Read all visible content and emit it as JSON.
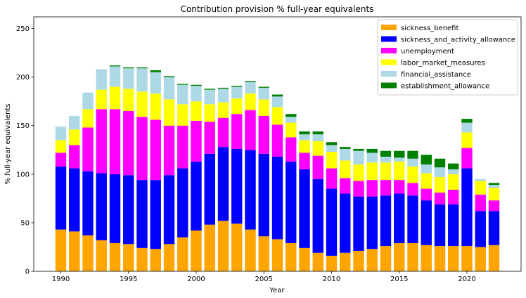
{
  "chart_data": {
    "type": "bar",
    "stacked": true,
    "title": "Contribution provision % full-year equivalents",
    "xlabel": "Year",
    "ylabel": "% full-year equivalents",
    "xlim": [
      1988,
      2024
    ],
    "ylim": [
      0,
      262
    ],
    "xticks": [
      1990,
      1995,
      2000,
      2005,
      2010,
      2015,
      2020
    ],
    "yticks": [
      0,
      50,
      100,
      150,
      200,
      250
    ],
    "grid": false,
    "legend_position": "top-right",
    "x": [
      1990,
      1991,
      1992,
      1993,
      1994,
      1995,
      1996,
      1997,
      1998,
      1999,
      2000,
      2001,
      2002,
      2003,
      2004,
      2005,
      2006,
      2007,
      2008,
      2009,
      2010,
      2011,
      2012,
      2013,
      2014,
      2015,
      2016,
      2017,
      2018,
      2019,
      2020,
      2021,
      2022
    ],
    "series": [
      {
        "name": "sickness_benefit",
        "color": "#ffa500",
        "values": [
          43,
          41,
          37,
          32,
          29,
          28,
          24,
          23,
          28,
          35,
          42,
          48,
          52,
          49,
          43,
          36,
          33,
          29,
          24,
          19,
          16,
          19,
          21,
          23,
          26,
          29,
          29,
          27,
          26,
          26,
          26,
          25,
          27
        ]
      },
      {
        "name": "sickness_and_activity_allowance",
        "color": "#0000ff",
        "values": [
          65,
          65,
          66,
          69,
          71,
          71,
          70,
          71,
          71,
          71,
          71,
          73,
          76,
          77,
          82,
          85,
          85,
          84,
          81,
          76,
          69,
          61,
          56,
          54,
          52,
          51,
          49,
          46,
          43,
          43,
          80,
          37,
          35
        ]
      },
      {
        "name": "unemployment",
        "color": "#ff00ff",
        "values": [
          14,
          24,
          45,
          66,
          67,
          66,
          65,
          62,
          51,
          44,
          42,
          33,
          30,
          36,
          41,
          39,
          33,
          25,
          17,
          24,
          21,
          16,
          16,
          17,
          16,
          14,
          13,
          12,
          12,
          15,
          21,
          17,
          11
        ]
      },
      {
        "name": "labor_market_measures",
        "color": "#ffff00",
        "values": [
          13,
          16,
          19,
          20,
          23,
          23,
          26,
          27,
          27,
          22,
          20,
          18,
          16,
          16,
          17,
          17,
          18,
          15,
          13,
          15,
          17,
          18,
          17,
          18,
          18,
          19,
          17,
          16,
          16,
          16,
          16,
          14,
          13
        ]
      },
      {
        "name": "financial_assistance",
        "color": "#add8e6",
        "values": [
          14,
          14,
          17,
          21,
          21,
          21,
          24,
          22,
          23,
          20,
          16,
          15,
          14,
          12,
          12,
          12,
          11,
          6,
          6,
          7,
          7,
          12,
          14,
          10,
          6,
          4,
          8,
          9,
          10,
          5,
          10,
          2,
          3
        ]
      },
      {
        "name": "establishment_allowance",
        "color": "#008000",
        "values": [
          0,
          0,
          0,
          0,
          1,
          1,
          1,
          2,
          1,
          1,
          1,
          1,
          1,
          1,
          1,
          1,
          2,
          3,
          3,
          3,
          3,
          2,
          2,
          4,
          6,
          7,
          8,
          10,
          9,
          6,
          4,
          0,
          2
        ]
      }
    ]
  }
}
